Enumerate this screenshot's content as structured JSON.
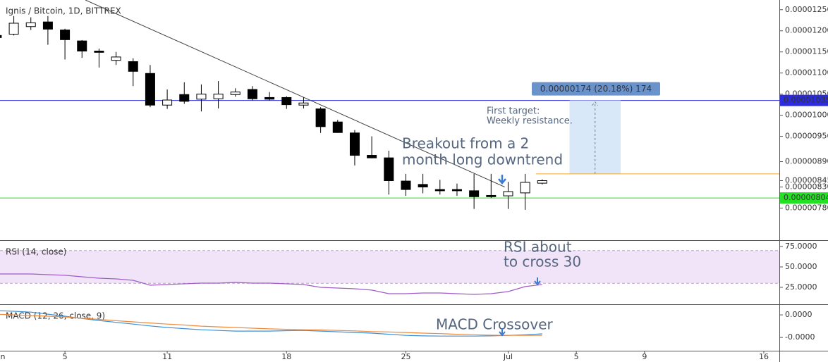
{
  "chart_data": [
    {
      "type": "candlestick",
      "title": "Ignis / Bitcoin, 1D, BITTREX",
      "x": [
        1,
        2,
        3,
        4,
        5,
        6,
        7,
        8,
        9,
        10,
        11,
        12,
        13,
        14,
        15,
        16,
        17,
        18,
        19,
        20,
        21,
        22,
        23,
        24,
        25,
        26,
        27,
        28,
        29,
        30,
        31,
        32,
        33
      ],
      "open": [
        1.189e-05,
        1.192e-05,
        1.21e-05,
        1.221e-05,
        1.202e-05,
        1.176e-05,
        1.152e-05,
        1.13e-05,
        1.127e-05,
        1.099e-05,
        1.024e-05,
        1.049e-05,
        1.038e-05,
        1.039e-05,
        1.049e-05,
        1.061e-05,
        1.042e-05,
        1.042e-05,
        1.024e-05,
        1.015e-05,
        9.84e-06,
        9.58e-06,
        9.05e-06,
        8.99e-06,
        8.44e-06,
        8.36e-06,
        8.24e-06,
        8.24e-06,
        8.21e-06,
        8.1e-06,
        8.09e-06,
        8.16e-06,
        8.39e-06
      ],
      "high": [
        1.199e-05,
        1.235e-05,
        1.232e-05,
        1.235e-05,
        1.205e-05,
        1.178e-05,
        1.158e-05,
        1.15e-05,
        1.135e-05,
        1.119e-05,
        1.061e-05,
        1.078e-05,
        1.073e-05,
        1.081e-05,
        1.064e-05,
        1.069e-05,
        1.055e-05,
        1.045e-05,
        1.042e-05,
        1.019e-05,
        9.89e-06,
        9.65e-06,
        9.5e-06,
        9.16e-06,
        8.61e-06,
        8.61e-06,
        8.47e-06,
        8.38e-06,
        8.61e-06,
        8.61e-06,
        8.42e-06,
        8.61e-06,
        8.48e-06
      ],
      "low": [
        1.181e-05,
        1.189e-05,
        1.202e-05,
        1.167e-05,
        1.132e-05,
        1.136e-05,
        1.113e-05,
        1.119e-05,
        1.069e-05,
        1.019e-05,
        1.015e-05,
        1.027e-05,
        1.009e-05,
        1.016e-05,
        1.044e-05,
        1.035e-05,
        1.035e-05,
        1.015e-05,
        1.016e-05,
        9.58e-06,
        9.58e-06,
        8.81e-06,
        8.98e-06,
        8.12e-06,
        8.09e-06,
        8.15e-06,
        8.12e-06,
        8.09e-06,
        7.78e-06,
        8.04e-06,
        7.78e-06,
        7.76e-06,
        8.36e-06
      ],
      "close": [
        1.184e-05,
        1.218e-05,
        1.219e-05,
        1.204e-05,
        1.179e-05,
        1.152e-05,
        1.149e-05,
        1.138e-05,
        1.104e-05,
        1.024e-05,
        1.036e-05,
        1.033e-05,
        1.05e-05,
        1.05e-05,
        1.055e-05,
        1.039e-05,
        1.038e-05,
        1.025e-05,
        1.029e-05,
        9.73e-06,
        9.59e-06,
        9.05e-06,
        8.99e-06,
        8.45e-06,
        8.24e-06,
        8.3e-06,
        8.21e-06,
        8.21e-06,
        8.07e-06,
        8.07e-06,
        8.19e-06,
        8.41e-06,
        8.45e-06
      ],
      "up_color": "#ffffff",
      "down_color": "#000000",
      "xlim": [
        1.19,
        46.91
      ],
      "xticks": [
        {
          "value": 1,
          "label": "n"
        },
        5,
        11,
        18,
        25,
        {
          "value": 31,
          "label": "Jul"
        },
        {
          "value": 35,
          "label": "5"
        },
        {
          "value": 39,
          "label": "9"
        },
        {
          "value": 46,
          "label": "16"
        }
      ],
      "ylim": [
        7.04e-06,
        1.273e-05
      ],
      "yticks": [
        {
          "value": 1.25e-05,
          "label": "0.00001250"
        },
        {
          "value": 1.2e-05,
          "label": "0.00001200"
        },
        {
          "value": 1.15e-05,
          "label": "0.00001150"
        },
        {
          "value": 1.1e-05,
          "label": "0.00001100"
        },
        {
          "value": 1.05e-05,
          "label": "0.00001050"
        },
        {
          "value": 1e-05,
          "label": "0.00001000"
        },
        {
          "value": 9.5e-06,
          "label": "0.00000950"
        },
        {
          "value": 8.9e-06,
          "label": "0.00000890"
        },
        {
          "value": 8.45e-06,
          "label": "0.00000845"
        },
        {
          "value": 8.3e-06,
          "label": "0.00000830"
        },
        {
          "value": 7.8e-06,
          "label": "0.00000780"
        }
      ],
      "lines": [
        {
          "value": 1.035e-05,
          "label": "0.00001035",
          "color": "#2b2bdf",
          "text_color": "#ffffff"
        },
        {
          "value": 8.04e-06,
          "label": "0.00000804",
          "color": "#22e022",
          "text_color": "#000000"
        }
      ],
      "trendline": {
        "x": [
          6.2,
          30.8
        ],
        "y": [
          1.273e-05,
          8.3e-06
        ]
      },
      "target": {
        "x": [
          34.6,
          37.6
        ],
        "y": [
          8.61e-06,
          1.035e-05
        ],
        "label": "0.00000174 (20.18%) 174"
      },
      "entry": {
        "x": 32.64,
        "value": 8.61e-06,
        "color": "#f5a623"
      },
      "annotations": [
        {
          "text": [
            "Breakout from a 2",
            "month long downtrend"
          ]
        },
        {
          "text": [
            "First target:",
            "Weekly resistance."
          ]
        }
      ]
    },
    {
      "type": "line",
      "title": "RSI (14, close)",
      "x": [
        1,
        2,
        3,
        4,
        5,
        6,
        7,
        8,
        9,
        10,
        11,
        12,
        13,
        14,
        15,
        16,
        17,
        18,
        19,
        20,
        21,
        22,
        23,
        24,
        25,
        26,
        27,
        28,
        29,
        30,
        31,
        32,
        33
      ],
      "series": [
        {
          "color": "#a05cc8",
          "values": [
            41.4,
            41.4,
            41.4,
            40.5,
            39.7,
            37.9,
            36.2,
            35.3,
            33.6,
            27.6,
            28.4,
            29.3,
            30.2,
            30.2,
            31.0,
            30.2,
            30.2,
            29.3,
            28.4,
            25.0,
            24.1,
            23.3,
            21.6,
            17.2,
            17.2,
            18.1,
            18.1,
            17.2,
            16.4,
            17.2,
            19.8,
            25.9,
            28.4
          ]
        }
      ],
      "band": [
        30,
        70
      ],
      "ylim": [
        4.3,
        81.9
      ],
      "yticks": [
        {
          "value": 75,
          "label": "75.0000"
        },
        {
          "value": 50,
          "label": "50.0000"
        },
        {
          "value": 25,
          "label": "25.0000"
        }
      ],
      "annotations": [
        {
          "text": [
            "RSI about",
            "to cross 30"
          ]
        }
      ]
    },
    {
      "type": "line",
      "title": "MACD (12, 26, close, 9)",
      "x": [
        1,
        2,
        3,
        4,
        5,
        6,
        7,
        8,
        9,
        10,
        11,
        12,
        13,
        14,
        15,
        16,
        17,
        18,
        19,
        20,
        21,
        22,
        23,
        24,
        25,
        26,
        27,
        28,
        29,
        30,
        31,
        32,
        33
      ],
      "series": [
        {
          "color": "#3d8fd6",
          "values": [
            1.9e-08,
            1.6e-08,
            1.2e-08,
            3e-09,
            -6e-09,
            -1.6e-08,
            -2.5e-08,
            -3.3e-08,
            -4.1e-08,
            -4.9e-08,
            -5.6e-08,
            -6.1e-08,
            -6.6e-08,
            -6.9e-08,
            -7.2e-08,
            -7.2e-08,
            -7.2e-08,
            -7e-08,
            -6.9e-08,
            -7.2e-08,
            -7.5e-08,
            -7.8e-08,
            -8.1e-08,
            -8.6e-08,
            -9.1e-08,
            -9.3e-08,
            -9.4e-08,
            -9.4e-08,
            -9.4e-08,
            -9.3e-08,
            -9.1e-08,
            -8.8e-08,
            -8.4e-08
          ]
        },
        {
          "color": "#f08a3c",
          "values": [
            3e-09,
            0,
            -3e-09,
            -6e-09,
            -9e-09,
            -1.5e-08,
            -2e-08,
            -2.6e-08,
            -3.1e-08,
            -3.6e-08,
            -4.1e-08,
            -4.5e-08,
            -5e-08,
            -5.3e-08,
            -5.6e-08,
            -5.9e-08,
            -6.2e-08,
            -6.4e-08,
            -6.6e-08,
            -6.7e-08,
            -6.9e-08,
            -7.1e-08,
            -7.4e-08,
            -7.6e-08,
            -7.8e-08,
            -8.1e-08,
            -8.3e-08,
            -8.6e-08,
            -8.8e-08,
            -9e-08,
            -9.1e-08,
            -9.1e-08,
            -9.1e-08
          ]
        }
      ],
      "ylim": [
        -1.59e-07,
        4.4e-08
      ],
      "yticks": [
        {
          "value": 0,
          "label": "0.0000"
        },
        {
          "value": -1e-07,
          "label": "-0.0000"
        }
      ],
      "annotations": [
        {
          "text": [
            "MACD Crossover"
          ]
        }
      ]
    }
  ]
}
